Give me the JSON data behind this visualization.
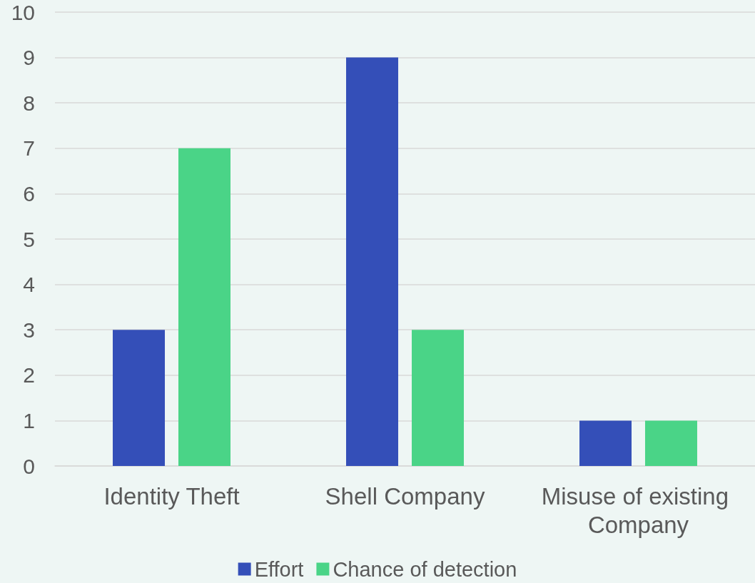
{
  "chart_data": {
    "type": "bar",
    "categories": [
      "Identity Theft",
      "Shell Company",
      "Misuse of existing Company"
    ],
    "series": [
      {
        "name": "Effort",
        "color": "#344fb8",
        "values": [
          3,
          9,
          1
        ]
      },
      {
        "name": "Chance of detection",
        "color": "#4ad487",
        "values": [
          7,
          3,
          1
        ]
      }
    ],
    "ylim": [
      0,
      10
    ],
    "yticks": [
      0,
      1,
      2,
      3,
      4,
      5,
      6,
      7,
      8,
      9,
      10
    ],
    "grid": "y",
    "legend": "bottom"
  }
}
